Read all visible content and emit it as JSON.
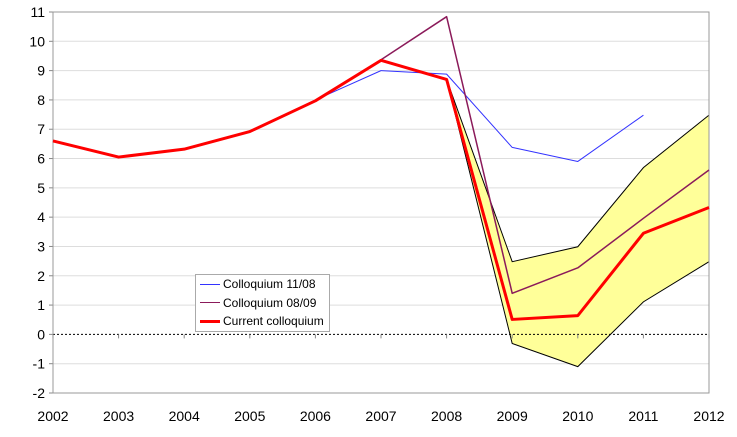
{
  "chart_data": {
    "type": "line",
    "title": "",
    "xlabel": "",
    "ylabel": "",
    "x": [
      2002,
      2003,
      2004,
      2005,
      2006,
      2007,
      2008,
      2009,
      2010,
      2011,
      2012
    ],
    "x_ticks": [
      "2002",
      "2003",
      "2004",
      "2005",
      "2006",
      "2007",
      "2008",
      "2009",
      "2010",
      "2011",
      "2012"
    ],
    "y_ticks": [
      "-2",
      "-1",
      "0",
      "1",
      "2",
      "3",
      "4",
      "5",
      "6",
      "7",
      "8",
      "9",
      "10",
      "11"
    ],
    "ylim": [
      -2,
      11
    ],
    "grid": true,
    "legend_position": "bottom-center",
    "series": [
      {
        "name": "Colloquium 11/08",
        "color": "#3333ff",
        "width": 1,
        "values": [
          6.6,
          6.05,
          6.32,
          6.92,
          8.0,
          9.0,
          8.88,
          6.38,
          5.9,
          7.48,
          null
        ]
      },
      {
        "name": "Colloquium 08/09",
        "color": "#8b1a5a",
        "width": 1.5,
        "values": [
          6.6,
          6.05,
          6.32,
          6.92,
          7.97,
          9.37,
          10.84,
          1.4,
          2.27,
          3.96,
          5.61
        ]
      },
      {
        "name": "Current colloquium",
        "color": "#ff0000",
        "width": 3,
        "values": [
          6.6,
          6.05,
          6.32,
          6.92,
          7.97,
          9.35,
          8.7,
          0.51,
          0.64,
          3.45,
          4.33
        ]
      }
    ],
    "band": {
      "color": "#ffff99",
      "x": [
        2008,
        2009,
        2010,
        2011,
        2012
      ],
      "upper": [
        8.7,
        2.48,
        2.99,
        5.69,
        7.48
      ],
      "lower": [
        8.7,
        -0.31,
        -1.1,
        1.11,
        2.48
      ]
    }
  }
}
